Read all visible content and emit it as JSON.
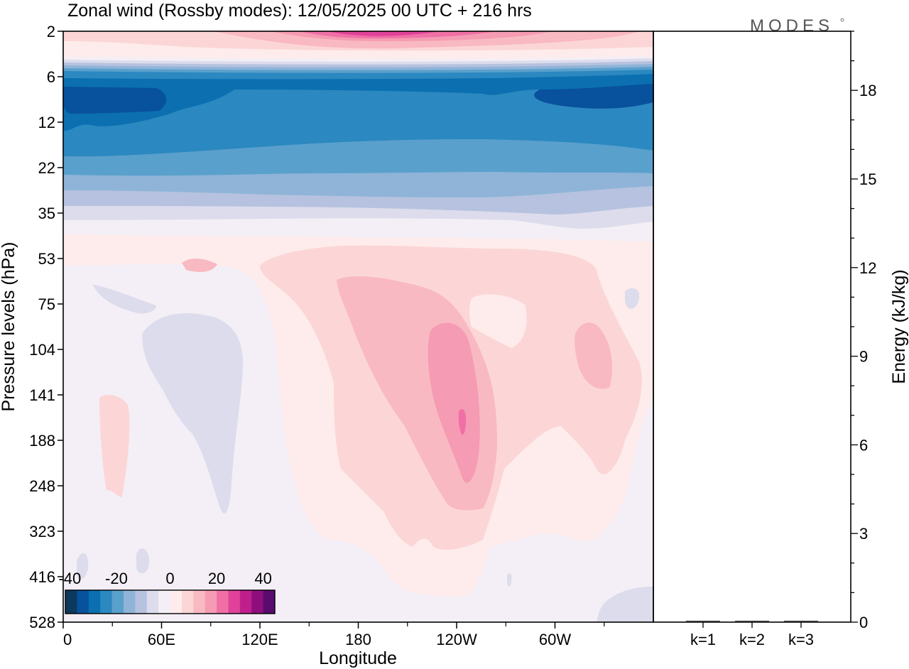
{
  "title": "Zonal wind (Rossby modes):  12/05/2025  00 UTC  + 216 hrs",
  "logo": "MODES",
  "chart_data": [
    {
      "type": "heatmap",
      "xlabel": "Longitude",
      "ylabel": "Pressure levels (hPa)",
      "x_tick_labels": [
        "0",
        "60E",
        "120E",
        "180",
        "120W",
        "60W"
      ],
      "x_tick_values_deg_east": [
        0,
        60,
        120,
        180,
        240,
        300
      ],
      "xlim_deg_east": [
        0,
        360
      ],
      "y_tick_labels": [
        "2",
        "6",
        "12",
        "22",
        "35",
        "53",
        "75",
        "104",
        "141",
        "188",
        "248",
        "323",
        "416",
        "528"
      ],
      "y_axis_scale": "categorical pressure levels, top to bottom",
      "colorbar": {
        "tick_labels": [
          "-40",
          "-20",
          "0",
          "20",
          "40"
        ],
        "range": [
          -45,
          45
        ],
        "step": 5,
        "colors": [
          "#0b3a5e",
          "#08519c",
          "#0b6fb0",
          "#2b88c0",
          "#5aa0cc",
          "#8fb4d8",
          "#b6c2df",
          "#dcdcec",
          "#f4eff6",
          "#fdeceb",
          "#fcd6d6",
          "#f9b9c2",
          "#f59bb3",
          "#f070a6",
          "#e0429a",
          "#bf1f8c",
          "#8e0f7c",
          "#5b0a6e"
        ]
      },
      "regions": [
        {
          "feature": "easterly core",
          "longitude_range": "0-360",
          "pressure_range": "6-12",
          "approx_value": -35
        },
        {
          "feature": "easterly band",
          "longitude_range": "0-360",
          "pressure_range": "12-35",
          "approx_value": -20
        },
        {
          "feature": "westerly upper",
          "longitude_range": "150-250",
          "pressure_range": "2-4",
          "approx_value": 20
        },
        {
          "feature": "westerly maximum",
          "longitude": "~135W",
          "pressure": "~170",
          "approx_value": 20
        },
        {
          "feature": "weak easterly",
          "longitude": "~55E",
          "pressure_range": "104-290",
          "approx_value": -2
        },
        {
          "feature": "westerly patch",
          "longitude": "~30W",
          "pressure": "~115",
          "approx_value": 8
        }
      ]
    },
    {
      "type": "bar",
      "categories": [
        "k=1",
        "k=2",
        "k=3"
      ],
      "values": [
        0.02,
        0.02,
        0.02
      ],
      "ylabel": "Energy (kJ/kg)",
      "ylim": [
        0,
        20
      ],
      "y_ticks": [
        0,
        3,
        6,
        9,
        12,
        15,
        18
      ]
    }
  ]
}
